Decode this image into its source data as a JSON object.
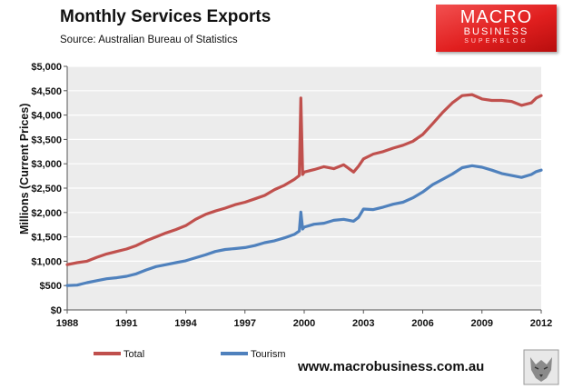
{
  "header": {
    "title": "Monthly  Services Exports",
    "source": "Source:  Australian Bureau of Statistics"
  },
  "logo": {
    "line1": "MACRO",
    "line2": "BUSINESS",
    "line3": "SUPERBLOG"
  },
  "footer": {
    "website": "www.macrobusiness.com.au"
  },
  "colors": {
    "total": "#c0504d",
    "tourism": "#4f81bd",
    "plot_bg": "#ececec",
    "grid": "#ffffff",
    "logo": "#e21f1f"
  },
  "chart_data": {
    "type": "line",
    "title": "Monthly  Services Exports",
    "subtitle": "Source:  Australian Bureau of Statistics",
    "xlabel": "",
    "ylabel": "Millions (Current Prices)",
    "xlim": [
      1988,
      2012
    ],
    "ylim": [
      0,
      5000
    ],
    "x_tick_labels": [
      "1988",
      "1991",
      "1994",
      "1997",
      "2000",
      "2003",
      "2006",
      "2009",
      "2012"
    ],
    "y_tick_labels": [
      "$0",
      "$500",
      "$1,000",
      "$1,500",
      "$2,000",
      "$2,500",
      "$3,000",
      "$3,500",
      "$4,000",
      "$4,500",
      "$5,000"
    ],
    "grid": "horizontal",
    "legend_position": "bottom-left",
    "series": [
      {
        "name": "Total",
        "points": [
          [
            1988.0,
            930
          ],
          [
            1988.5,
            970
          ],
          [
            1989.0,
            1000
          ],
          [
            1989.5,
            1080
          ],
          [
            1990.0,
            1150
          ],
          [
            1990.5,
            1200
          ],
          [
            1991.0,
            1250
          ],
          [
            1991.5,
            1320
          ],
          [
            1992.0,
            1420
          ],
          [
            1992.5,
            1500
          ],
          [
            1993.0,
            1580
          ],
          [
            1993.5,
            1650
          ],
          [
            1994.0,
            1730
          ],
          [
            1994.5,
            1860
          ],
          [
            1995.0,
            1960
          ],
          [
            1995.5,
            2030
          ],
          [
            1996.0,
            2090
          ],
          [
            1996.5,
            2160
          ],
          [
            1997.0,
            2210
          ],
          [
            1997.5,
            2280
          ],
          [
            1998.0,
            2350
          ],
          [
            1998.5,
            2470
          ],
          [
            1999.0,
            2560
          ],
          [
            1999.5,
            2680
          ],
          [
            1999.75,
            2760
          ],
          [
            1999.83,
            4350
          ],
          [
            1999.92,
            2780
          ],
          [
            2000.0,
            2830
          ],
          [
            2000.5,
            2880
          ],
          [
            2001.0,
            2940
          ],
          [
            2001.5,
            2900
          ],
          [
            2002.0,
            2980
          ],
          [
            2002.5,
            2830
          ],
          [
            2002.75,
            2950
          ],
          [
            2003.0,
            3100
          ],
          [
            2003.5,
            3200
          ],
          [
            2004.0,
            3250
          ],
          [
            2004.5,
            3320
          ],
          [
            2005.0,
            3380
          ],
          [
            2005.5,
            3460
          ],
          [
            2006.0,
            3600
          ],
          [
            2006.5,
            3820
          ],
          [
            2007.0,
            4050
          ],
          [
            2007.5,
            4250
          ],
          [
            2008.0,
            4400
          ],
          [
            2008.5,
            4420
          ],
          [
            2009.0,
            4330
          ],
          [
            2009.5,
            4300
          ],
          [
            2010.0,
            4300
          ],
          [
            2010.5,
            4280
          ],
          [
            2011.0,
            4200
          ],
          [
            2011.5,
            4250
          ],
          [
            2011.75,
            4350
          ],
          [
            2012.0,
            4400
          ]
        ]
      },
      {
        "name": "Tourism",
        "points": [
          [
            1988.0,
            500
          ],
          [
            1988.5,
            510
          ],
          [
            1989.0,
            560
          ],
          [
            1989.5,
            600
          ],
          [
            1990.0,
            640
          ],
          [
            1990.5,
            660
          ],
          [
            1991.0,
            690
          ],
          [
            1991.5,
            740
          ],
          [
            1992.0,
            820
          ],
          [
            1992.5,
            890
          ],
          [
            1993.0,
            930
          ],
          [
            1993.5,
            970
          ],
          [
            1994.0,
            1010
          ],
          [
            1994.5,
            1070
          ],
          [
            1995.0,
            1130
          ],
          [
            1995.5,
            1200
          ],
          [
            1996.0,
            1240
          ],
          [
            1996.5,
            1260
          ],
          [
            1997.0,
            1280
          ],
          [
            1997.5,
            1320
          ],
          [
            1998.0,
            1380
          ],
          [
            1998.5,
            1420
          ],
          [
            1999.0,
            1480
          ],
          [
            1999.5,
            1550
          ],
          [
            1999.75,
            1620
          ],
          [
            1999.83,
            2010
          ],
          [
            1999.92,
            1660
          ],
          [
            2000.0,
            1700
          ],
          [
            2000.5,
            1760
          ],
          [
            2001.0,
            1780
          ],
          [
            2001.5,
            1840
          ],
          [
            2002.0,
            1860
          ],
          [
            2002.5,
            1820
          ],
          [
            2002.75,
            1900
          ],
          [
            2003.0,
            2070
          ],
          [
            2003.5,
            2060
          ],
          [
            2004.0,
            2110
          ],
          [
            2004.5,
            2170
          ],
          [
            2005.0,
            2210
          ],
          [
            2005.5,
            2300
          ],
          [
            2006.0,
            2420
          ],
          [
            2006.5,
            2570
          ],
          [
            2007.0,
            2680
          ],
          [
            2007.5,
            2790
          ],
          [
            2008.0,
            2920
          ],
          [
            2008.5,
            2960
          ],
          [
            2009.0,
            2930
          ],
          [
            2009.5,
            2870
          ],
          [
            2010.0,
            2800
          ],
          [
            2010.5,
            2760
          ],
          [
            2011.0,
            2720
          ],
          [
            2011.5,
            2780
          ],
          [
            2011.75,
            2840
          ],
          [
            2012.0,
            2870
          ]
        ]
      }
    ]
  }
}
